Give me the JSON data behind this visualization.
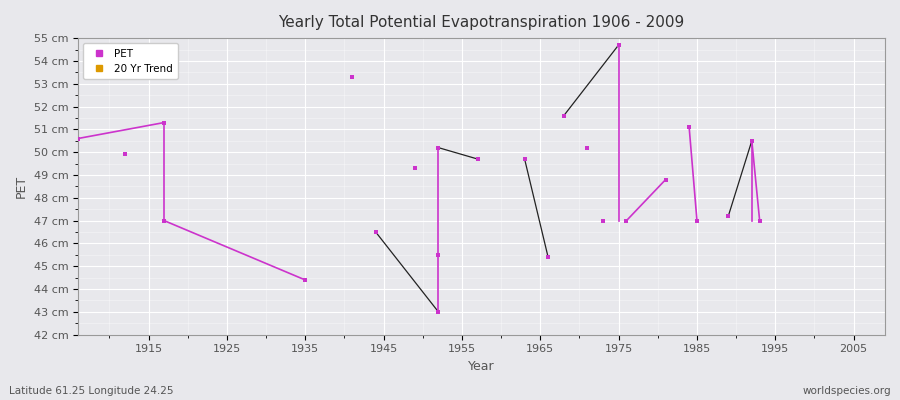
{
  "title": "Yearly Total Potential Evapotranspiration 1906 - 2009",
  "xlabel": "Year",
  "ylabel": "PET",
  "subtitle_left": "Latitude 61.25 Longitude 24.25",
  "subtitle_right": "worldspecies.org",
  "xlim": [
    1906,
    2009
  ],
  "ylim": [
    42,
    55
  ],
  "yticks": [
    42,
    43,
    44,
    45,
    46,
    47,
    48,
    49,
    50,
    51,
    52,
    53,
    54,
    55
  ],
  "ytick_labels": [
    "42 cm",
    "43 cm",
    "44 cm",
    "45 cm",
    "46 cm",
    "47 cm",
    "48 cm",
    "49 cm",
    "50 cm",
    "51 cm",
    "52 cm",
    "53 cm",
    "54 cm",
    "55 cm"
  ],
  "xticks": [
    1915,
    1925,
    1935,
    1945,
    1955,
    1965,
    1975,
    1985,
    1995,
    2005
  ],
  "background_color": "#e8e8ec",
  "plot_bg_color": "#e8e8ec",
  "pet_color": "#cc33cc",
  "trend_color": "#dd9900",
  "grid_color": "#ffffff",
  "pet_points": [
    [
      1906,
      50.6
    ],
    [
      1912,
      49.9
    ],
    [
      1917,
      51.3
    ],
    [
      1917,
      47.0
    ],
    [
      1935,
      44.4
    ],
    [
      1941,
      53.3
    ],
    [
      1944,
      46.5
    ],
    [
      1949,
      49.3
    ],
    [
      1952,
      50.2
    ],
    [
      1952,
      45.5
    ],
    [
      1952,
      43.0
    ],
    [
      1957,
      49.7
    ],
    [
      1963,
      49.7
    ],
    [
      1966,
      45.4
    ],
    [
      1968,
      51.6
    ],
    [
      1971,
      50.2
    ],
    [
      1973,
      47.0
    ],
    [
      1975,
      54.7
    ],
    [
      1976,
      47.0
    ],
    [
      1981,
      48.8
    ],
    [
      1984,
      51.1
    ],
    [
      1985,
      47.0
    ],
    [
      1989,
      47.2
    ],
    [
      1992,
      50.5
    ],
    [
      1993,
      47.0
    ]
  ],
  "trend_segments": [
    {
      "x": 1917,
      "y_top": 51.3,
      "y_bot": 47.0
    },
    {
      "x": 1952,
      "y_top": 50.2,
      "y_bot": 43.0
    },
    {
      "x": 1975,
      "y_top": 54.7,
      "y_bot": 47.0
    },
    {
      "x": 1992,
      "y_top": 50.5,
      "y_bot": 47.0
    }
  ],
  "dark_lines": [
    [
      [
        1944,
        46.5
      ],
      [
        1952,
        43.0
      ]
    ],
    [
      [
        1952,
        50.2
      ],
      [
        1957,
        49.7
      ]
    ],
    [
      [
        1963,
        49.7
      ],
      [
        1966,
        45.4
      ]
    ],
    [
      [
        1968,
        51.6
      ],
      [
        1975,
        54.7
      ]
    ],
    [
      [
        1989,
        47.2
      ],
      [
        1992,
        50.5
      ]
    ]
  ]
}
